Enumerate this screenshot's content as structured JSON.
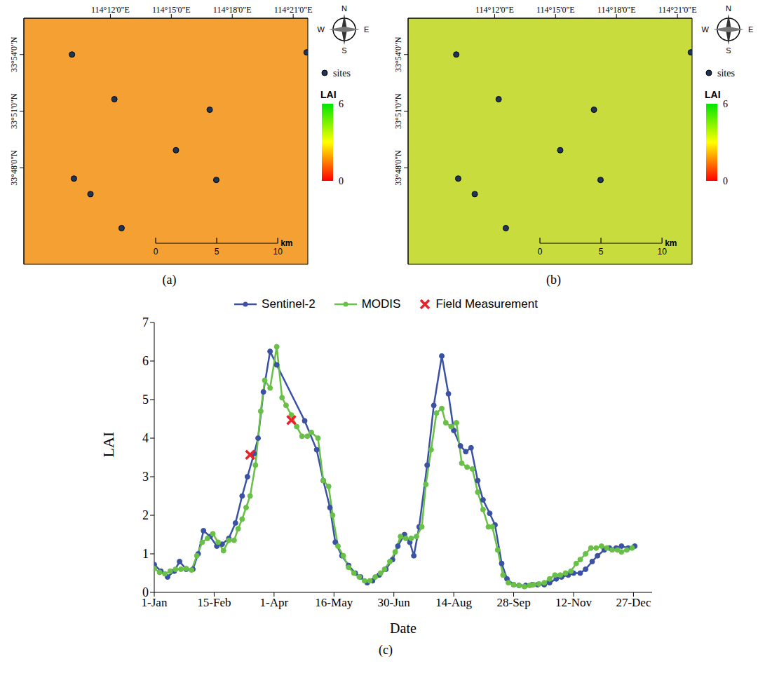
{
  "chart_data": [
    {
      "type": "map",
      "label": "(a)",
      "color": "#f5a033",
      "legend": "right",
      "xlim": [
        114.129,
        114.362
      ],
      "ylim": [
        33.715,
        33.932
      ],
      "xticks": [
        {
          "value": 114.2,
          "label": "114°12'0\"E"
        },
        {
          "value": 114.25,
          "label": "114°15'0\"E"
        },
        {
          "value": 114.3,
          "label": "114°18'0\"E"
        },
        {
          "value": 114.35,
          "label": "114°21'0\"E"
        }
      ],
      "yticks": [
        {
          "value": 33.8,
          "label": "33°48'0\"N"
        },
        {
          "value": 33.85,
          "label": "33°51'0\"N"
        },
        {
          "value": 33.9,
          "label": "33°54'0\"N"
        }
      ],
      "series": [
        {
          "name": "sites",
          "color": "#1f3556",
          "marker": "circle",
          "x": [
            114.1685,
            114.2033,
            114.2815,
            114.2538,
            114.1701,
            114.1837,
            114.2869,
            114.2092,
            114.361
          ],
          "values": [
            33.9,
            33.8606,
            33.8513,
            33.8156,
            33.7906,
            33.7769,
            33.7894,
            33.7469,
            33.9019
          ]
        }
      ],
      "compass": [
        "N",
        "E",
        "S",
        "W"
      ],
      "colorbar": {
        "title": "LAI",
        "range": [
          0,
          6
        ],
        "ticks": [
          0,
          6
        ],
        "colors": [
          "#ff0000",
          "#ffff00",
          "#00e600"
        ]
      },
      "scale_bar": {
        "ticks": [
          0,
          5,
          10
        ],
        "unit": "km"
      }
    },
    {
      "type": "map",
      "label": "(b)",
      "color": "#c9dc3e",
      "legend": "right",
      "xlim": [
        114.129,
        114.362
      ],
      "ylim": [
        33.715,
        33.932
      ],
      "xticks": [
        {
          "value": 114.2,
          "label": "114°12'0\"E"
        },
        {
          "value": 114.25,
          "label": "114°15'0\"E"
        },
        {
          "value": 114.3,
          "label": "114°18'0\"E"
        },
        {
          "value": 114.35,
          "label": "114°21'0\"E"
        }
      ],
      "yticks": [
        {
          "value": 33.8,
          "label": "33°48'0\"N"
        },
        {
          "value": 33.85,
          "label": "33°51'0\"N"
        },
        {
          "value": 33.9,
          "label": "33°54'0\"N"
        }
      ],
      "series": [
        {
          "name": "sites",
          "color": "#1f3556",
          "marker": "circle",
          "x": [
            114.1685,
            114.2033,
            114.2815,
            114.2538,
            114.1701,
            114.1837,
            114.2869,
            114.2092,
            114.361
          ],
          "values": [
            33.9,
            33.8606,
            33.8513,
            33.8156,
            33.7906,
            33.7769,
            33.7894,
            33.7469,
            33.9019
          ]
        }
      ],
      "compass": [
        "N",
        "E",
        "S",
        "W"
      ],
      "colorbar": {
        "title": "LAI",
        "range": [
          0,
          6
        ],
        "ticks": [
          0,
          6
        ],
        "colors": [
          "#ff0000",
          "#ffff00",
          "#00e600"
        ]
      },
      "scale_bar": {
        "ticks": [
          0,
          5,
          10
        ],
        "unit": "km"
      }
    },
    {
      "type": "line",
      "label": "(c)",
      "xlabel": "Date",
      "ylabel": "LAI",
      "legend": "top",
      "xlim": [
        1,
        375
      ],
      "ylim": [
        0,
        7
      ],
      "xticks": [
        {
          "value": 1,
          "label": "1-Jan"
        },
        {
          "value": 46,
          "label": "15-Feb"
        },
        {
          "value": 91,
          "label": "1-Apr"
        },
        {
          "value": 136,
          "label": "16-May"
        },
        {
          "value": 181,
          "label": "30-Jun"
        },
        {
          "value": 226,
          "label": "14-Aug"
        },
        {
          "value": 271,
          "label": "28-Sep"
        },
        {
          "value": 316,
          "label": "12-Nov"
        },
        {
          "value": 361,
          "label": "27-Dec"
        }
      ],
      "yticks": [
        0,
        1,
        2,
        3,
        4,
        5,
        6,
        7
      ],
      "series": [
        {
          "name": "Sentinel-2",
          "color": "#3b51a3",
          "marker": "circle",
          "type": "line",
          "x": [
            1,
            6,
            11,
            16,
            20,
            25,
            30,
            34,
            38,
            43,
            48,
            52,
            57,
            62,
            67,
            71,
            76,
            79,
            83,
            88,
            93,
            114,
            123,
            128,
            133,
            137,
            142,
            147,
            152,
            156,
            161,
            165,
            170,
            175,
            180,
            184,
            189,
            193,
            196,
            200,
            206,
            211,
            217,
            222,
            226,
            231,
            235,
            239,
            244,
            248,
            253,
            257,
            262,
            266,
            271,
            275,
            280,
            285,
            289,
            294,
            298,
            303,
            307,
            312,
            316,
            321,
            325,
            330,
            334,
            339,
            343,
            348,
            352,
            357,
            362
          ],
          "values": [
            0.72,
            0.55,
            0.4,
            0.55,
            0.8,
            0.6,
            0.6,
            1.0,
            1.6,
            1.45,
            1.2,
            1.25,
            1.4,
            1.8,
            2.5,
            3.0,
            3.6,
            4.0,
            5.2,
            6.25,
            5.9,
            4.45,
            3.7,
            2.9,
            2.2,
            1.3,
            0.95,
            0.7,
            0.5,
            0.4,
            0.25,
            0.3,
            0.45,
            0.6,
            0.85,
            1.2,
            1.5,
            1.3,
            0.95,
            1.7,
            3.3,
            4.85,
            6.13,
            5.15,
            4.2,
            3.8,
            3.65,
            3.75,
            2.9,
            2.4,
            2.05,
            1.75,
            0.75,
            0.35,
            0.2,
            0.18,
            0.18,
            0.2,
            0.2,
            0.2,
            0.25,
            0.35,
            0.4,
            0.45,
            0.5,
            0.5,
            0.6,
            0.8,
            0.95,
            1.1,
            1.15,
            1.15,
            1.2,
            1.15,
            1.2
          ]
        },
        {
          "name": "MODIS",
          "color": "#68c046",
          "marker": "circle",
          "type": "line",
          "x": [
            1,
            5,
            9,
            13,
            17,
            21,
            25,
            29,
            33,
            37,
            41,
            45,
            49,
            53,
            57,
            61,
            64,
            67,
            70,
            73,
            77,
            81,
            84,
            88,
            93,
            97,
            100,
            104,
            108,
            112,
            116,
            119,
            124,
            128,
            132,
            135,
            139,
            143,
            147,
            151,
            155,
            159,
            163,
            167,
            171,
            174,
            178,
            182,
            186,
            190,
            194,
            198,
            202,
            205,
            209,
            213,
            217,
            220,
            224,
            228,
            232,
            236,
            240,
            244,
            248,
            252,
            255,
            259,
            263,
            267,
            271,
            275,
            279,
            283,
            286,
            290,
            294,
            298,
            302,
            306,
            310,
            314,
            318,
            321,
            325,
            329,
            333,
            337,
            341,
            345,
            349,
            352,
            356,
            360
          ],
          "values": [
            0.62,
            0.52,
            0.48,
            0.55,
            0.6,
            0.6,
            0.62,
            0.58,
            0.95,
            1.3,
            1.4,
            1.52,
            1.3,
            1.08,
            1.35,
            1.35,
            1.65,
            1.9,
            2.2,
            2.5,
            3.3,
            4.7,
            5.5,
            5.3,
            6.37,
            5.05,
            4.85,
            4.6,
            4.3,
            4.05,
            4.05,
            4.15,
            4.0,
            2.9,
            2.75,
            2.0,
            1.2,
            0.95,
            0.65,
            0.5,
            0.4,
            0.3,
            0.3,
            0.4,
            0.5,
            0.6,
            0.8,
            1.05,
            1.45,
            1.4,
            1.4,
            1.45,
            1.7,
            2.8,
            3.7,
            4.65,
            4.77,
            4.4,
            4.3,
            4.4,
            3.35,
            3.25,
            3.2,
            2.6,
            2.15,
            1.7,
            1.7,
            1.1,
            0.45,
            0.25,
            0.2,
            0.18,
            0.15,
            0.18,
            0.2,
            0.22,
            0.25,
            0.35,
            0.45,
            0.45,
            0.5,
            0.55,
            0.75,
            0.85,
            1.0,
            1.15,
            1.15,
            1.2,
            1.15,
            1.1,
            1.1,
            1.05,
            1.1,
            1.15
          ]
        },
        {
          "name": "Field Measurement",
          "color": "#e8212b",
          "marker": "x",
          "type": "scatter",
          "x": [
            73,
            104
          ],
          "values": [
            3.57,
            4.47
          ]
        }
      ]
    }
  ]
}
